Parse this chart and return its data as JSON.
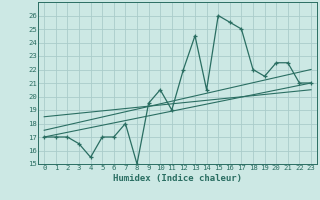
{
  "xlabel": "Humidex (Indice chaleur)",
  "bg_color": "#cce8e4",
  "grid_color": "#aaccca",
  "line_color": "#2a6e62",
  "xlim": [
    -0.5,
    23.5
  ],
  "ylim": [
    15,
    27
  ],
  "xticks": [
    0,
    1,
    2,
    3,
    4,
    5,
    6,
    7,
    8,
    9,
    10,
    11,
    12,
    13,
    14,
    15,
    16,
    17,
    18,
    19,
    20,
    21,
    22,
    23
  ],
  "yticks": [
    15,
    16,
    17,
    18,
    19,
    20,
    21,
    22,
    23,
    24,
    25,
    26
  ],
  "main_x": [
    0,
    1,
    2,
    3,
    4,
    5,
    6,
    7,
    8,
    9,
    10,
    11,
    12,
    13,
    14,
    15,
    16,
    17,
    18,
    19,
    20,
    21,
    22,
    23
  ],
  "main_y": [
    17,
    17,
    17,
    16.5,
    15.5,
    17,
    17,
    18,
    15,
    19.5,
    20.5,
    19,
    22,
    24.5,
    20.5,
    26,
    25.5,
    25,
    22,
    21.5,
    22.5,
    22.5,
    21,
    21
  ],
  "line1_x": [
    0,
    23
  ],
  "line1_y": [
    17.0,
    21.0
  ],
  "line2_x": [
    0,
    23
  ],
  "line2_y": [
    17.5,
    22.0
  ],
  "line3_x": [
    0,
    23
  ],
  "line3_y": [
    18.5,
    20.5
  ]
}
